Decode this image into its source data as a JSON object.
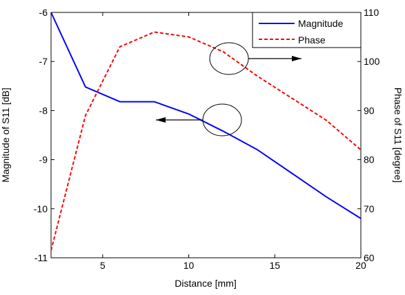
{
  "chart_data": {
    "type": "line",
    "xlabel": "Distance [mm]",
    "ylabel_left": "Magnitude of S11 [dB]",
    "ylabel_right": "Phase of S11 [degree]",
    "xlim": [
      2,
      20
    ],
    "ylim_left": [
      -11,
      -6
    ],
    "ylim_right": [
      60,
      110
    ],
    "x_ticks": [
      "5",
      "10",
      "15",
      "20"
    ],
    "y_left_ticks": [
      "-11",
      "-10",
      "-9",
      "-8",
      "-7",
      "-6"
    ],
    "y_right_ticks": [
      "60",
      "70",
      "80",
      "90",
      "100",
      "110"
    ],
    "legend_position": "top-right",
    "grid": false,
    "series": [
      {
        "name": "Magnitude",
        "axis": "left",
        "color": "#0000ff",
        "style": "solid",
        "x": [
          2,
          4,
          6,
          8,
          10,
          12,
          14,
          16,
          18,
          20
        ],
        "values": [
          -6.0,
          -7.52,
          -7.82,
          -7.82,
          -8.07,
          -8.42,
          -8.8,
          -9.28,
          -9.76,
          -10.2
        ]
      },
      {
        "name": "Phase",
        "axis": "right",
        "color": "#ff0000",
        "style": "dashed",
        "x": [
          2,
          4,
          6,
          8,
          10,
          12,
          14,
          16,
          18,
          20
        ],
        "values": [
          61.5,
          89,
          103,
          106,
          105,
          102,
          97,
          92.5,
          88,
          82
        ]
      }
    ],
    "annotations": [
      {
        "type": "ellipse",
        "points_to": "Phase",
        "direction": "right"
      },
      {
        "type": "ellipse",
        "points_to": "Magnitude",
        "direction": "left"
      }
    ]
  }
}
